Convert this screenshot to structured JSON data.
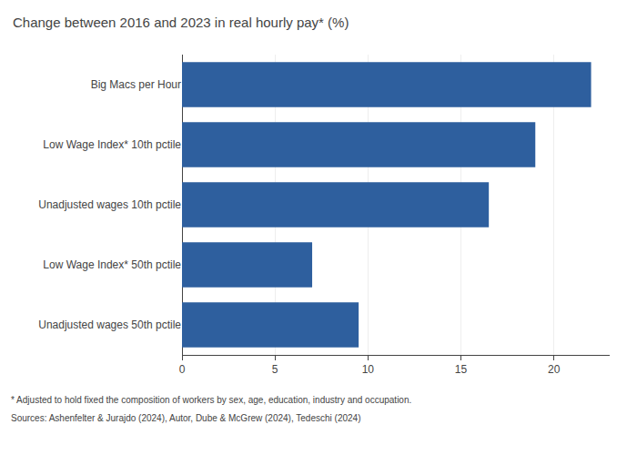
{
  "chart_data": {
    "type": "bar",
    "orientation": "horizontal",
    "title": "Change between 2016 and 2023 in real hourly pay* (%)",
    "categories": [
      "Unadjusted wages 50th pctile",
      "Low Wage Index* 50th pctile",
      "Unadjusted wages 10th pctile",
      "Low Wage Index* 10th pctile",
      "Big Macs per Hour"
    ],
    "values": [
      9.5,
      7.0,
      16.5,
      19.0,
      22.0
    ],
    "color": "#2e5f9e",
    "xlim": [
      0,
      23
    ],
    "xticks": [
      0,
      5,
      10,
      15,
      20
    ],
    "grid": true,
    "annotations": [
      "* Adjusted to hold fixed the composition of workers by sex, age, education, industry and occupation.",
      "Sources: Ashenfelter & Jurajdo (2024), Autor, Dube & McGrew (2024), Tedeschi (2024)"
    ]
  }
}
